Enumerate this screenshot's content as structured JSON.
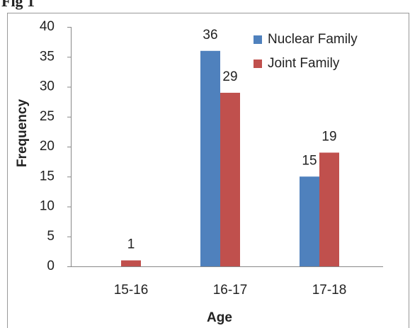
{
  "chart_data": {
    "type": "bar",
    "title": "Fig 1",
    "categories": [
      "15-16",
      "16-17",
      "17-18"
    ],
    "series": [
      {
        "name": "Nuclear Family",
        "color": "#4f81bd",
        "values": [
          0,
          36,
          15
        ],
        "value_labels": [
          null,
          "36",
          "15"
        ]
      },
      {
        "name": "Joint Family",
        "color": "#c0504d",
        "values": [
          1,
          29,
          19
        ],
        "value_labels": [
          "1",
          "29",
          "19"
        ]
      }
    ],
    "xlabel": "Age",
    "ylabel": "Frequency",
    "ylim": [
      0,
      40
    ],
    "yticks": [
      0,
      5,
      10,
      15,
      20,
      25,
      30,
      35,
      40
    ],
    "grid": false,
    "legend": "upper right"
  }
}
